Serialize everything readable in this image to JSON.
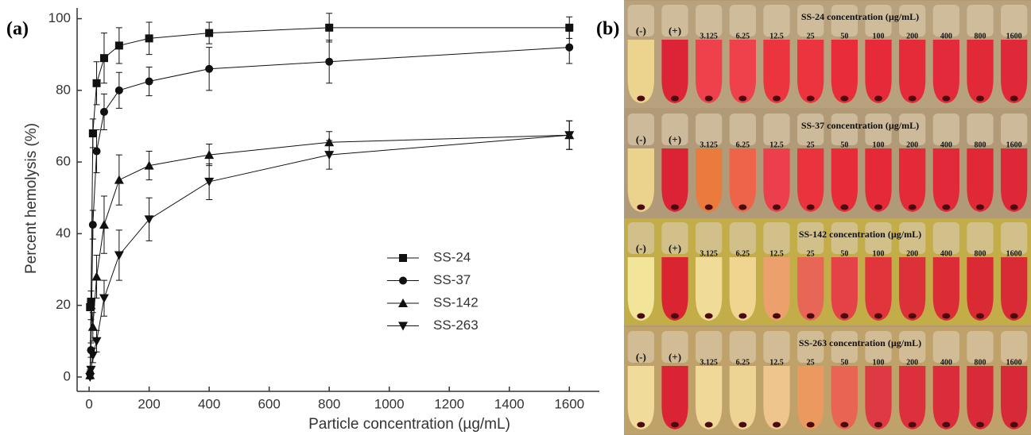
{
  "chart_data": {
    "type": "scatter-line",
    "panel_label": "(a)",
    "x_label": "Particle concentration (µg/mL)",
    "y_label": "Percent hemolysis (%)",
    "x": [
      3.125,
      6.25,
      12.5,
      25,
      50,
      100,
      200,
      400,
      800,
      1600
    ],
    "series": [
      {
        "name": "SS-24",
        "color": "#111111",
        "marker": "square",
        "values": [
          19.5,
          21,
          68,
          82,
          89,
          92.5,
          94.5,
          96,
          97.5,
          97.5
        ],
        "errors": [
          1,
          1,
          4,
          6,
          7,
          5,
          4.5,
          3,
          4,
          3
        ]
      },
      {
        "name": "SS-37",
        "color": "#111111",
        "marker": "circle",
        "values": [
          1,
          7.5,
          42.5,
          63,
          74,
          80,
          82.5,
          86,
          88,
          92
        ],
        "errors": [
          1,
          2,
          4,
          6,
          5,
          5,
          4,
          6,
          6,
          4.5
        ]
      },
      {
        "name": "SS-142",
        "color": "#111111",
        "marker": "triangle-up",
        "values": [
          0.5,
          20,
          14,
          28,
          42.5,
          55,
          59,
          62,
          65.5,
          67.5
        ],
        "errors": [
          1,
          4,
          4,
          6,
          8,
          7,
          4,
          3,
          3,
          4
        ]
      },
      {
        "name": "SS-263",
        "color": "#111111",
        "marker": "triangle-down",
        "values": [
          0,
          2,
          6,
          10,
          22,
          34,
          44,
          54.5,
          62,
          67.5
        ],
        "errors": [
          0.5,
          1,
          2,
          3,
          5,
          7,
          6,
          5,
          4,
          4
        ]
      }
    ],
    "xlim": [
      -40,
      1700
    ],
    "xticks": [
      0,
      200,
      400,
      600,
      800,
      1000,
      1200,
      1400,
      1600
    ],
    "ylim": [
      -4,
      103
    ],
    "yticks": [
      0,
      20,
      40,
      60,
      80,
      100
    ],
    "grid": false,
    "legend": "lower right"
  },
  "photo": {
    "panel_label": "(b)",
    "rows": [
      {
        "title": "SS-24  concentration (µg/mL)",
        "tubes": [
          "(-)",
          "(+)",
          "3.125",
          "6.25",
          "12.5",
          "25",
          "50",
          "100",
          "200",
          "400",
          "800",
          "1600"
        ]
      },
      {
        "title": "SS-37  concentration (µg/mL)",
        "tubes": [
          "(-)",
          "(+)",
          "3.125",
          "6.25",
          "12.5",
          "25",
          "50",
          "100",
          "200",
          "400",
          "800",
          "1600"
        ]
      },
      {
        "title": "SS-142 concentration (µg/mL)",
        "tubes": [
          "(-)",
          "(+)",
          "3.125",
          "6.25",
          "12.5",
          "25",
          "50",
          "100",
          "200",
          "400",
          "800",
          "1600"
        ]
      },
      {
        "title": "SS-263 concentration (µg/mL)",
        "tubes": [
          "(-)",
          "(+)",
          "3.125",
          "6.25",
          "12.5",
          "25",
          "50",
          "100",
          "200",
          "400",
          "800",
          "1600"
        ]
      }
    ]
  }
}
